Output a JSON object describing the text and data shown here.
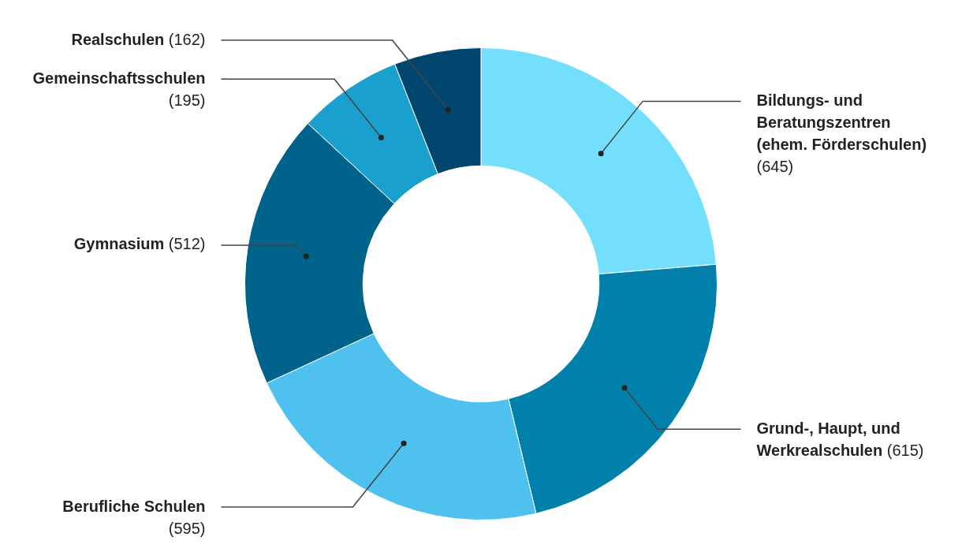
{
  "chart_data": {
    "type": "donut",
    "categories": [
      "Bildungs- und Beratungszentren (ehem. Förderschulen)",
      "Grund-, Haupt, und Werkrealschulen",
      "Berufliche Schulen",
      "Gymnasium",
      "Gemeinschaftsschulen",
      "Realschulen"
    ],
    "values": [
      645,
      615,
      595,
      512,
      195,
      162
    ],
    "colors": [
      "#74dffd",
      "#0080ab",
      "#4fc1ee",
      "#00638c",
      "#1aa0cf",
      "#00466e"
    ],
    "value_labels": [
      "(645)",
      "(615)",
      "(595)",
      "(512)",
      "(195)",
      "(162)"
    ],
    "legend": false
  }
}
